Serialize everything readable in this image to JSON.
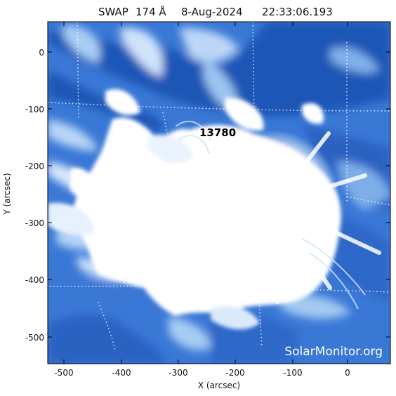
{
  "title": {
    "instrument": "SWAP",
    "wavelength": "174 Å",
    "date": "8-Aug-2024",
    "time": "22:33:06.193"
  },
  "axes": {
    "xlabel": "X (arcsec)",
    "ylabel": "Y (arcsec)",
    "xticks": [
      "-500",
      "-400",
      "-300",
      "-200",
      "-100",
      "0"
    ],
    "yticks": [
      "0",
      "-100",
      "-200",
      "-300",
      "-400",
      "-500"
    ]
  },
  "active_region": {
    "label": "13780"
  },
  "watermark": "SolarMonitor.org",
  "colors": {
    "deep_blue": "#1f56b6",
    "mid_blue": "#4f8ee0",
    "light_blue": "#a8cdf4",
    "saturated": "#ffffff"
  }
}
